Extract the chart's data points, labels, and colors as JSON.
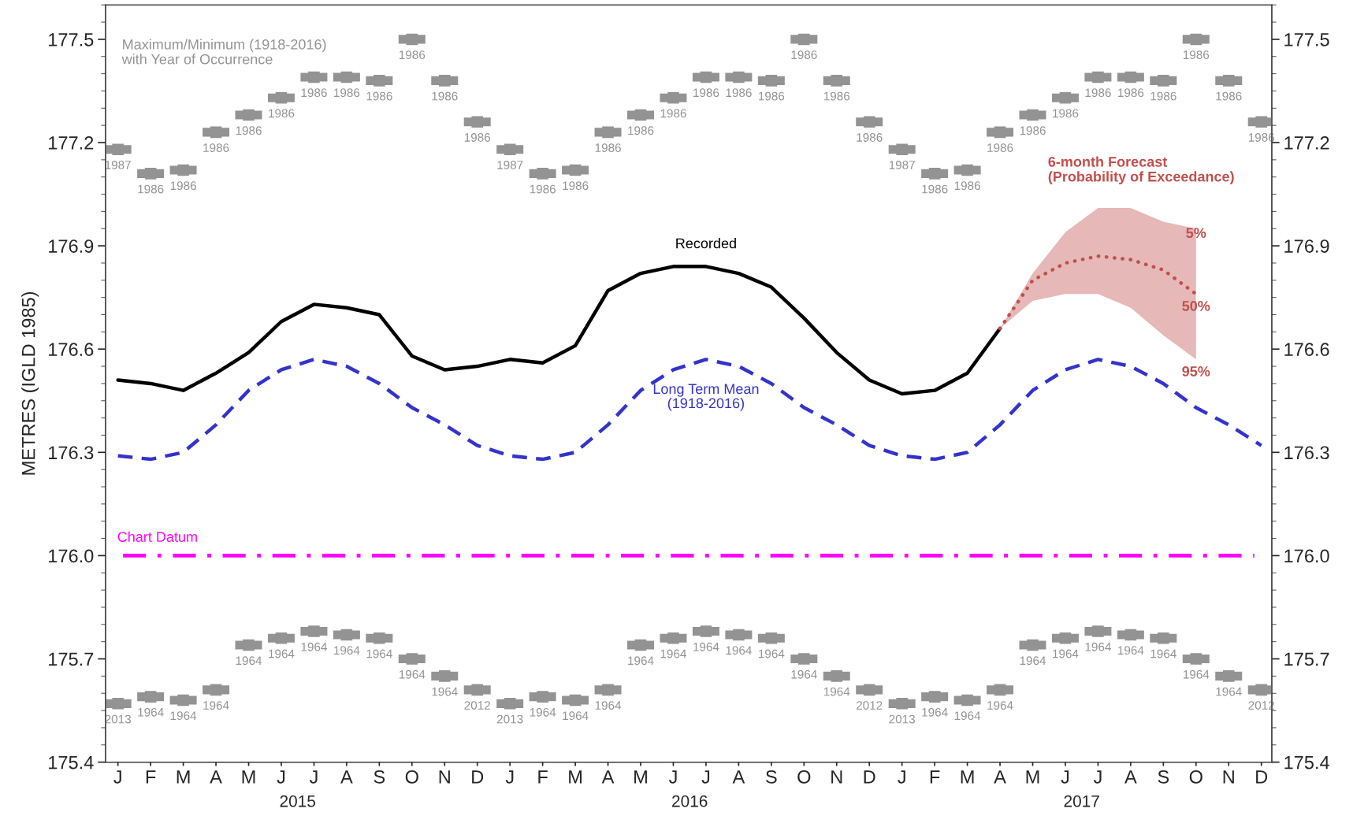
{
  "chart_data": {
    "type": "line",
    "ylabel": "METRES (IGLD 1985)",
    "categories": [
      "J",
      "F",
      "M",
      "A",
      "M",
      "J",
      "J",
      "A",
      "S",
      "O",
      "N",
      "D",
      "J",
      "F",
      "M",
      "A",
      "M",
      "J",
      "J",
      "A",
      "S",
      "O",
      "N",
      "D",
      "J",
      "F",
      "M",
      "A",
      "M",
      "J",
      "J",
      "A",
      "S",
      "O",
      "N",
      "D"
    ],
    "ylim": [
      175.4,
      177.6
    ],
    "yticks": [
      175.4,
      175.7,
      {
        "value": 176.0,
        "label": "176.0"
      },
      176.3,
      176.6,
      176.9,
      177.2,
      177.5
    ],
    "y2lim": [
      175.4,
      177.6
    ],
    "y2ticks": [
      175.4,
      175.7,
      {
        "value": 176.0,
        "label": "176.0"
      },
      176.3,
      176.6,
      176.9,
      177.2,
      177.5
    ],
    "grid": false,
    "legend": false,
    "series": [
      {
        "type": "scatter",
        "marker": "square",
        "color": "#939393",
        "values": [
          177.18,
          177.11,
          177.12,
          177.23,
          177.28,
          177.33,
          177.39,
          177.39,
          177.38,
          177.5,
          177.38,
          177.26,
          177.18,
          177.11,
          177.12,
          177.23,
          177.28,
          177.33,
          177.39,
          177.39,
          177.38,
          177.5,
          177.38,
          177.26,
          177.18,
          177.11,
          177.12,
          177.23,
          177.28,
          177.33,
          177.39,
          177.39,
          177.38,
          177.5,
          177.38,
          177.26
        ]
      },
      {
        "type": "scatter",
        "marker": "square",
        "color": "#939393",
        "values": [
          175.57,
          175.59,
          175.58,
          175.61,
          175.74,
          175.76,
          175.78,
          175.77,
          175.76,
          175.7,
          175.65,
          175.61,
          175.57,
          175.59,
          175.58,
          175.61,
          175.74,
          175.76,
          175.78,
          175.77,
          175.76,
          175.7,
          175.65,
          175.61,
          175.57,
          175.59,
          175.58,
          175.61,
          175.74,
          175.76,
          175.78,
          175.77,
          175.76,
          175.7,
          175.65,
          175.61
        ]
      },
      {
        "name": "Long Term Mean\n(1918-2016)",
        "line_style": "dashed",
        "color": "#3333cc",
        "values": [
          176.29,
          176.28,
          176.3,
          176.38,
          176.48,
          176.54,
          176.57,
          176.55,
          176.5,
          176.43,
          176.38,
          176.32,
          176.29,
          176.28,
          176.3,
          176.38,
          176.48,
          176.54,
          176.57,
          176.55,
          176.5,
          176.43,
          176.38,
          176.32,
          176.29,
          176.28,
          176.3,
          176.38,
          176.48,
          176.54,
          176.57,
          176.55,
          176.5,
          176.43,
          176.38,
          176.32
        ]
      },
      {
        "name": "Recorded",
        "line_style": "solid",
        "color": "#000000",
        "values": [
          176.51,
          176.5,
          176.48,
          176.53,
          176.59,
          176.68,
          176.73,
          176.72,
          176.7,
          176.58,
          176.54,
          176.55,
          176.57,
          176.56,
          176.61,
          176.77,
          176.82,
          176.84,
          176.84,
          176.82,
          176.78,
          176.69,
          176.59,
          176.51,
          176.47,
          176.48,
          176.53,
          176.66,
          null,
          null,
          null,
          null,
          null,
          null,
          null,
          null
        ]
      },
      {
        "line_style": "dotted",
        "color": "#c0504d",
        "values": [
          null,
          null,
          null,
          null,
          null,
          null,
          null,
          null,
          null,
          null,
          null,
          null,
          null,
          null,
          null,
          null,
          null,
          null,
          null,
          null,
          null,
          null,
          null,
          null,
          null,
          null,
          null,
          176.66,
          176.8,
          176.85,
          176.87,
          176.86,
          176.83,
          176.76,
          null,
          null
        ],
        "lower": [
          null,
          null,
          null,
          null,
          null,
          null,
          null,
          null,
          null,
          null,
          null,
          null,
          null,
          null,
          null,
          null,
          null,
          null,
          null,
          null,
          null,
          null,
          null,
          null,
          null,
          null,
          null,
          176.66,
          176.74,
          176.76,
          176.76,
          176.72,
          176.64,
          176.57,
          null,
          null
        ],
        "upper": [
          null,
          null,
          null,
          null,
          null,
          null,
          null,
          null,
          null,
          null,
          null,
          null,
          null,
          null,
          null,
          null,
          null,
          null,
          null,
          null,
          null,
          null,
          null,
          null,
          null,
          null,
          null,
          176.66,
          176.82,
          176.94,
          177.01,
          177.01,
          176.97,
          176.95,
          null,
          null
        ]
      }
    ],
    "ref_lines": [
      {
        "axis": "y",
        "value": 176.0,
        "label": "Chart Datum",
        "color": "#ff00ff",
        "line_style": "dashdot"
      }
    ],
    "annotations": [
      "Maximum/Minimum (1918-2016)\nwith Year of Occurrence",
      "6-month Forecast\n(Probability of Exceedance)",
      "2015",
      "2016",
      "2017",
      "5%",
      "50%",
      "95%",
      "1987",
      "1986",
      "1986",
      "1986",
      "1986",
      "1986",
      "1986",
      "1986",
      "1986",
      "1986",
      "1986",
      "1986",
      "1987",
      "1986",
      "1986",
      "1986",
      "1986",
      "1986",
      "1986",
      "1986",
      "1986",
      "1986",
      "1986",
      "1986",
      "1987",
      "1986",
      "1986",
      "1986",
      "1986",
      "1986",
      "1986",
      "1986",
      "1986",
      "1986",
      "1986",
      "1986",
      "2013",
      "1964",
      "1964",
      "1964",
      "1964",
      "1964",
      "1964",
      "1964",
      "1964",
      "1964",
      "1964",
      "2012",
      "2013",
      "1964",
      "1964",
      "1964",
      "1964",
      "1964",
      "1964",
      "1964",
      "1964",
      "1964",
      "1964",
      "2012",
      "2013",
      "1964",
      "1964",
      "1964",
      "1964",
      "1964",
      "1964",
      "1964",
      "1964",
      "1964",
      "1964",
      "2012"
    ]
  }
}
